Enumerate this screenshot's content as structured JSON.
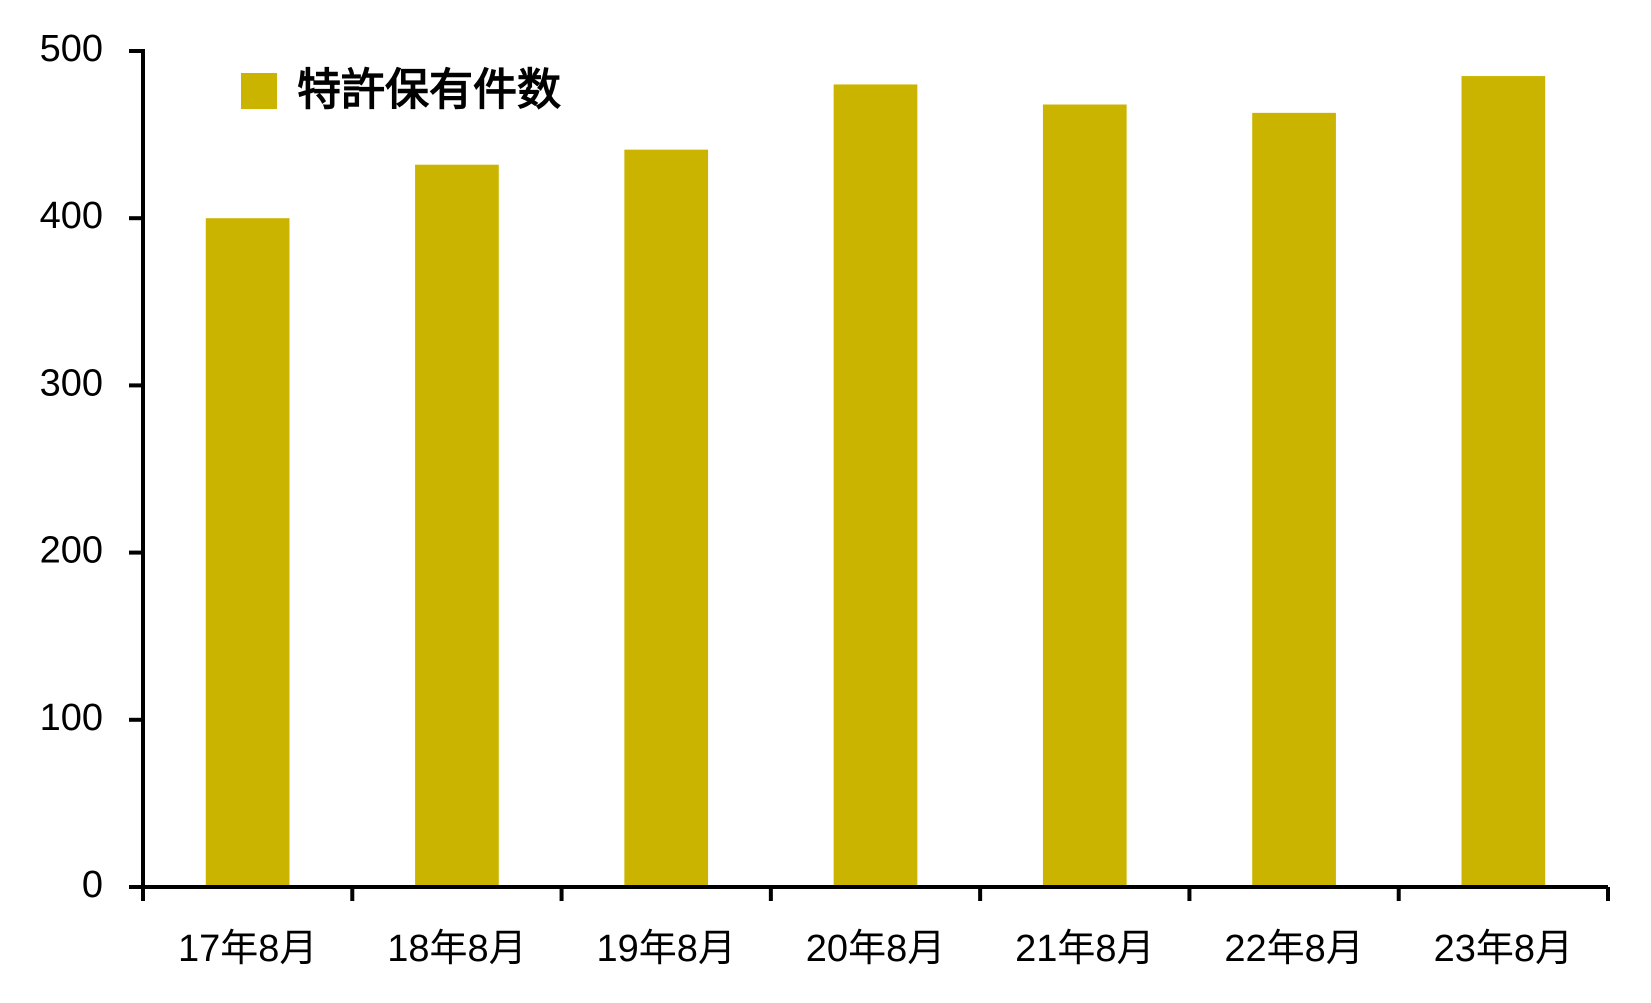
{
  "chart_data": {
    "type": "bar",
    "categories": [
      "17年8月",
      "18年8月",
      "19年8月",
      "20年8月",
      "21年8月",
      "22年8月",
      "23年8月"
    ],
    "series": [
      {
        "name": "特許保有件数",
        "color": "#cbb400",
        "values": [
          400,
          432,
          441,
          480,
          468,
          463,
          485
        ]
      }
    ],
    "ylim": [
      0,
      500
    ],
    "yticks": [
      0,
      100,
      200,
      300,
      400,
      500
    ],
    "grid": false,
    "legend": "top-left"
  }
}
